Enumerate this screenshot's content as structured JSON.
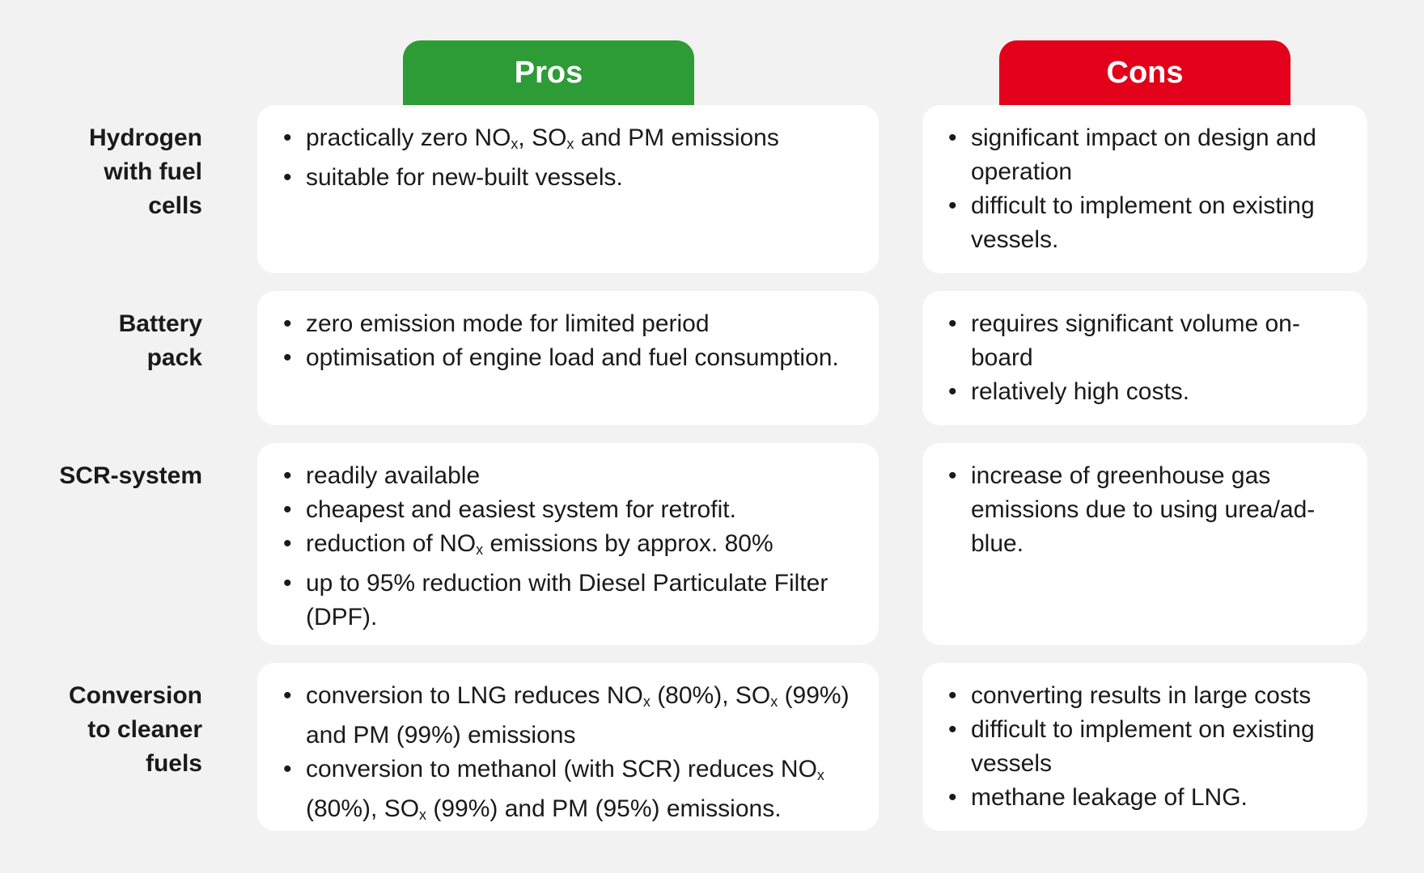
{
  "header": {
    "pros_label": "Pros",
    "cons_label": "Cons"
  },
  "colors": {
    "pros": "#2e9c36",
    "cons": "#e2001a",
    "card": "#ffffff",
    "background": "#f2f2f2"
  },
  "bullet_glyph": "•",
  "rows": [
    {
      "label": [
        "Hydrogen",
        "with fuel",
        "cells"
      ],
      "pros": [
        [
          [
            "practically zero NO",
            ""
          ],
          [
            "x",
            "sub"
          ],
          [
            ", SO",
            ""
          ],
          [
            "x",
            "sub"
          ],
          [
            " and PM emissions",
            ""
          ]
        ],
        [
          [
            "suitable for new-built vessels.",
            ""
          ]
        ]
      ],
      "cons": [
        [
          [
            "significant impact on design and operation",
            ""
          ]
        ],
        [
          [
            "difficult to implement on existing vessels.",
            ""
          ]
        ]
      ]
    },
    {
      "label": [
        "Battery",
        "pack"
      ],
      "pros": [
        [
          [
            "zero emission mode for limited period",
            ""
          ]
        ],
        [
          [
            "optimisation of engine load and fuel consumption.",
            ""
          ]
        ]
      ],
      "cons": [
        [
          [
            "requires significant volume on-board",
            ""
          ]
        ],
        [
          [
            "relatively high costs.",
            ""
          ]
        ]
      ]
    },
    {
      "label": [
        "SCR-system"
      ],
      "pros": [
        [
          [
            "readily available",
            ""
          ]
        ],
        [
          [
            "cheapest and easiest system for retrofit.",
            ""
          ]
        ],
        [
          [
            "reduction of NO",
            ""
          ],
          [
            "x",
            "sub"
          ],
          [
            " emissions by approx. 80%",
            ""
          ]
        ],
        [
          [
            "up to 95% reduction with Diesel Particulate Filter (DPF).",
            ""
          ]
        ]
      ],
      "cons": [
        [
          [
            "increase of greenhouse gas emissions due to using urea/ad-blue.",
            ""
          ]
        ]
      ]
    },
    {
      "label": [
        "Conversion",
        "to cleaner",
        "fuels"
      ],
      "pros": [
        [
          [
            "conversion to LNG reduces NO",
            ""
          ],
          [
            "x",
            "sub"
          ],
          [
            " (80%), SO",
            ""
          ],
          [
            "x",
            "sub"
          ],
          [
            " (99%) and PM (99%) emissions",
            ""
          ]
        ],
        [
          [
            "conversion to methanol (with SCR) reduces NO",
            ""
          ],
          [
            "x",
            "sub"
          ],
          [
            " (80%), SO",
            ""
          ],
          [
            "x",
            "sub"
          ],
          [
            " (99%) and PM (95%) emissions.",
            ""
          ]
        ]
      ],
      "cons": [
        [
          [
            "converting results in large costs",
            ""
          ]
        ],
        [
          [
            "difficult to implement on existing vessels",
            ""
          ]
        ],
        [
          [
            "methane leakage of LNG.",
            ""
          ]
        ]
      ]
    }
  ]
}
